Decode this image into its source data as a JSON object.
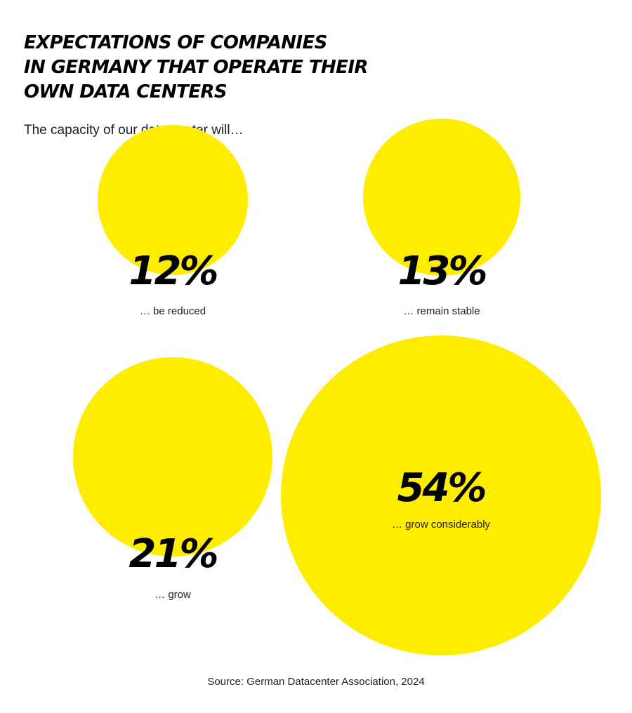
{
  "header": {
    "title_lines": [
      "EXPECTATIONS OF COMPANIES",
      "IN GERMANY THAT OPERATE THEIR",
      "OWN DATA CENTERS"
    ],
    "subtitle": "The capacity of our data center will…"
  },
  "chart_data": {
    "type": "bubble",
    "title": "EXPECTATIONS OF COMPANIES IN GERMANY THAT OPERATE THEIR OWN DATA CENTERS",
    "subtitle": "The capacity of our data center will…",
    "unit": "%",
    "categories": [
      "… be reduced",
      "… remain stable",
      "… grow",
      "… grow considerably"
    ],
    "values": [
      12,
      13,
      21,
      54
    ],
    "value_labels": [
      "12%",
      "13%",
      "21%",
      "54%"
    ],
    "bubble_color": "#ffed00"
  },
  "footer": {
    "source": "Source: German Datacenter Association, 2024"
  }
}
